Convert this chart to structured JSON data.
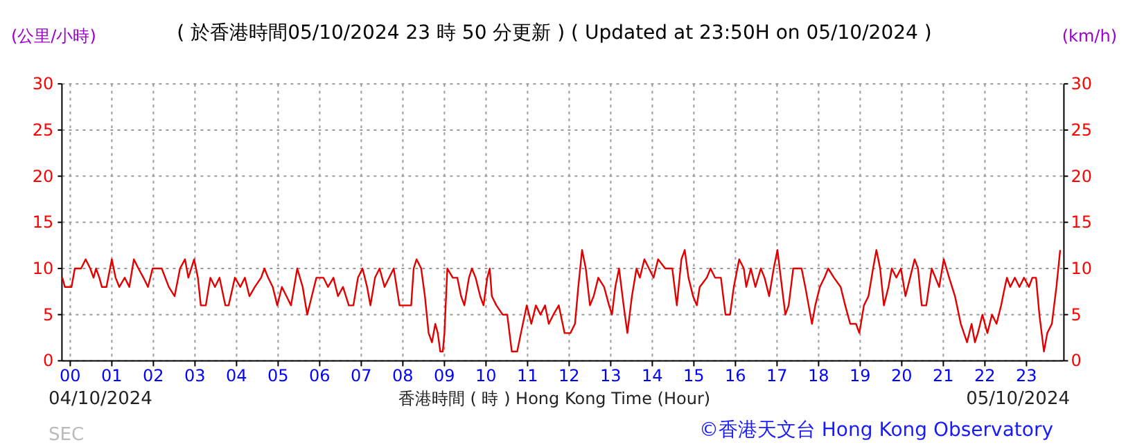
{
  "chart_data": {
    "type": "line",
    "title": "( 於香港時間05/10/2024 23 時 50 分更新 ) ( Updated at 23:50H on 05/10/2024 )",
    "ylabel": "(公里/小時)",
    "y2label": "(km/h)",
    "xlabel": "香港時間 ( 時 ) Hong Kong Time (Hour)",
    "annotations": [
      "04/10/2024",
      "05/10/2024",
      "SEC",
      "©香港天文台 Hong Kong Observatory"
    ],
    "xlim": [
      -0.2,
      23.9
    ],
    "xticks": [
      {
        "value": 0,
        "label": "00"
      },
      {
        "value": 1,
        "label": "01"
      },
      {
        "value": 2,
        "label": "02"
      },
      {
        "value": 3,
        "label": "03"
      },
      {
        "value": 4,
        "label": "04"
      },
      {
        "value": 5,
        "label": "05"
      },
      {
        "value": 6,
        "label": "06"
      },
      {
        "value": 7,
        "label": "07"
      },
      {
        "value": 8,
        "label": "08"
      },
      {
        "value": 9,
        "label": "09"
      },
      {
        "value": 10,
        "label": "10"
      },
      {
        "value": 11,
        "label": "11"
      },
      {
        "value": 12,
        "label": "12"
      },
      {
        "value": 13,
        "label": "13"
      },
      {
        "value": 14,
        "label": "14"
      },
      {
        "value": 15,
        "label": "15"
      },
      {
        "value": 16,
        "label": "16"
      },
      {
        "value": 17,
        "label": "17"
      },
      {
        "value": 18,
        "label": "18"
      },
      {
        "value": 19,
        "label": "19"
      },
      {
        "value": 20,
        "label": "20"
      },
      {
        "value": 21,
        "label": "21"
      },
      {
        "value": 22,
        "label": "22"
      },
      {
        "value": 23,
        "label": "23"
      }
    ],
    "ylim": [
      0,
      30
    ],
    "yticks": [
      0,
      5,
      10,
      15,
      20,
      25,
      30
    ],
    "y2lim": [
      0,
      30
    ],
    "y2ticks": [
      0,
      5,
      10,
      15,
      20,
      25,
      30
    ],
    "grid": true,
    "line_style": "solid",
    "marker": "none",
    "series": [
      {
        "color": "#e00000",
        "x": [
          -0.19,
          -0.13,
          0.03,
          0.11,
          0.26,
          0.37,
          0.48,
          0.56,
          0.62,
          0.7,
          0.76,
          0.87,
          1.0,
          1.09,
          1.18,
          1.31,
          1.42,
          1.53,
          1.64,
          1.76,
          1.87,
          1.98,
          2.2,
          2.37,
          2.51,
          2.64,
          2.76,
          2.84,
          2.98,
          3.07,
          3.14,
          3.26,
          3.37,
          3.48,
          3.59,
          3.73,
          3.81,
          3.96,
          4.09,
          4.2,
          4.31,
          4.44,
          4.59,
          4.67,
          4.76,
          4.87,
          4.98,
          5.09,
          5.2,
          5.31,
          5.46,
          5.59,
          5.7,
          5.81,
          5.92,
          6.09,
          6.2,
          6.33,
          6.44,
          6.56,
          6.7,
          6.81,
          6.92,
          7.03,
          7.14,
          7.22,
          7.33,
          7.44,
          7.56,
          7.67,
          7.78,
          7.92,
          8.08,
          8.2,
          8.26,
          8.33,
          8.44,
          8.53,
          8.62,
          8.7,
          8.78,
          8.84,
          8.9,
          8.96,
          9.0,
          9.07,
          9.2,
          9.31,
          9.4,
          9.48,
          9.59,
          9.66,
          9.75,
          9.86,
          9.94,
          10.03,
          10.09,
          10.14,
          10.25,
          10.4,
          10.51,
          10.62,
          10.75,
          10.84,
          10.98,
          11.09,
          11.2,
          11.31,
          11.42,
          11.51,
          11.62,
          11.75,
          11.89,
          12.03,
          12.14,
          12.22,
          12.31,
          12.4,
          12.5,
          12.59,
          12.7,
          12.84,
          12.96,
          13.03,
          13.11,
          13.2,
          13.31,
          13.4,
          13.51,
          13.62,
          13.7,
          13.81,
          13.92,
          14.03,
          14.14,
          14.31,
          14.48,
          14.59,
          14.7,
          14.78,
          14.87,
          14.98,
          15.07,
          15.14,
          15.31,
          15.4,
          15.51,
          15.65,
          15.76,
          15.87,
          15.96,
          16.09,
          16.2,
          16.26,
          16.37,
          16.48,
          16.61,
          16.7,
          16.81,
          16.92,
          17.01,
          17.09,
          17.2,
          17.28,
          17.39,
          17.59,
          17.68,
          17.76,
          17.84,
          17.92,
          18.03,
          18.14,
          18.23,
          18.37,
          18.53,
          18.64,
          18.76,
          18.9,
          18.98,
          19.09,
          19.2,
          19.31,
          19.39,
          19.48,
          19.57,
          19.68,
          19.76,
          19.87,
          19.98,
          20.09,
          20.2,
          20.31,
          20.39,
          20.48,
          20.59,
          20.72,
          20.81,
          20.9,
          21.01,
          21.14,
          21.28,
          21.42,
          21.57,
          21.68,
          21.76,
          21.83,
          21.94,
          22.06,
          22.17,
          22.28,
          22.39,
          22.48,
          22.53,
          22.61,
          22.72,
          22.83,
          22.94,
          23.06,
          23.14,
          23.23,
          23.31,
          23.42,
          23.5,
          23.61,
          23.72,
          23.81
        ],
        "values": [
          9,
          8,
          8,
          10,
          10,
          11,
          10,
          9,
          10,
          9,
          8,
          8,
          11,
          9,
          8,
          9,
          8,
          11,
          10,
          9,
          8,
          10,
          10,
          8,
          7,
          10,
          11,
          9,
          11,
          9,
          6,
          6,
          9,
          8,
          9,
          6,
          6,
          9,
          8,
          9,
          7,
          8,
          9,
          10,
          9,
          8,
          6,
          8,
          7,
          6,
          10,
          8,
          5,
          7,
          9,
          9,
          8,
          9,
          7,
          8,
          6,
          6,
          9,
          10,
          8,
          6,
          9,
          10,
          8,
          9,
          10,
          6,
          6,
          6,
          10,
          11,
          10,
          7,
          3,
          2,
          4,
          3,
          1,
          1,
          3,
          10,
          9,
          9,
          7,
          6,
          9,
          10,
          9,
          7,
          6,
          9,
          10,
          7,
          6,
          5,
          5,
          1,
          1,
          3,
          6,
          4,
          6,
          5,
          6,
          4,
          5,
          6,
          3,
          3,
          4,
          8,
          12,
          10,
          6,
          7,
          9,
          8,
          6,
          5,
          8,
          10,
          6,
          3,
          7,
          10,
          9,
          11,
          10,
          9,
          11,
          10,
          10,
          6,
          11,
          12,
          9,
          7,
          6,
          8,
          9,
          10,
          9,
          9,
          5,
          5,
          8,
          11,
          10,
          8,
          10,
          8,
          10,
          9,
          7,
          10,
          12,
          9,
          5,
          6,
          10,
          10,
          8,
          6,
          4,
          6,
          8,
          9,
          10,
          9,
          8,
          6,
          4,
          4,
          3,
          6,
          7,
          10,
          12,
          10,
          6,
          8,
          10,
          9,
          10,
          7,
          9,
          11,
          10,
          6,
          6,
          10,
          9,
          8,
          11,
          9,
          7,
          4,
          2,
          4,
          2,
          3,
          5,
          3,
          5,
          4,
          6,
          8,
          9,
          8,
          9,
          8,
          9,
          8,
          9,
          9,
          5,
          1,
          3,
          4,
          8,
          12
        ]
      }
    ]
  }
}
